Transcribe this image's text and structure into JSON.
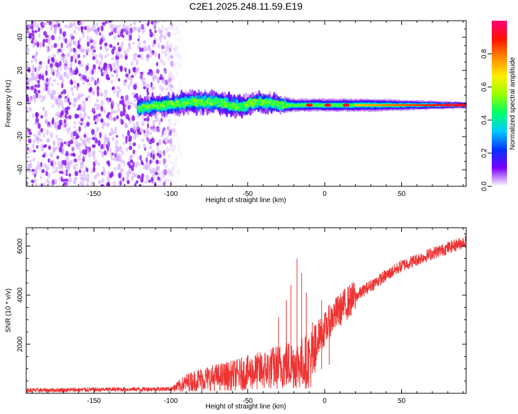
{
  "title": "C2E1.2025.248.11.59.E19",
  "chart_data": [
    {
      "type": "heatmap",
      "name": "spectrogram",
      "xlabel": "Height of straight line (km)",
      "ylabel": "Frequency (Hz)",
      "xlim": [
        -194,
        92
      ],
      "ylim": [
        -50,
        50
      ],
      "xticks": [
        -150,
        -100,
        -50,
        0,
        50
      ],
      "xtick_labels": [
        "-150",
        "-100",
        "-50",
        "0",
        "50"
      ],
      "yticks": [
        -40,
        -20,
        0,
        20,
        40
      ],
      "ytick_labels": [
        "-40",
        "-20",
        "0",
        "20",
        "40"
      ],
      "noise_region_x": [
        -194,
        -95
      ],
      "signal_start_x": -121,
      "band_center_points": [
        [
          -121,
          -3
        ],
        [
          -115,
          -2
        ],
        [
          -105,
          -1
        ],
        [
          -95,
          0
        ],
        [
          -85,
          1
        ],
        [
          -75,
          1
        ],
        [
          -65,
          0
        ],
        [
          -55,
          -2
        ],
        [
          -45,
          1
        ],
        [
          -35,
          0
        ],
        [
          -25,
          -1
        ],
        [
          -15,
          -1
        ],
        [
          0,
          -1
        ],
        [
          20,
          -1
        ],
        [
          50,
          -1
        ],
        [
          92,
          -1
        ]
      ],
      "band_halfwidth_points": [
        [
          -121,
          6
        ],
        [
          -90,
          7
        ],
        [
          -60,
          7
        ],
        [
          -30,
          6
        ],
        [
          -20,
          4
        ],
        [
          0,
          4
        ],
        [
          30,
          4
        ],
        [
          60,
          3
        ],
        [
          92,
          2
        ]
      ],
      "hot_spots": [
        [
          -10,
          -1
        ],
        [
          2,
          -1
        ],
        [
          14,
          -1
        ],
        [
          80,
          -1
        ],
        [
          86,
          -1
        ],
        [
          90,
          -1
        ]
      ]
    },
    {
      "type": "line",
      "name": "snr",
      "xlabel": "Height of straight line (km)",
      "ylabel": "SNR (10 * v/v)",
      "xlim": [
        -194,
        92
      ],
      "ylim": [
        0,
        6750
      ],
      "xticks": [
        -150,
        -100,
        -50,
        0,
        50
      ],
      "xtick_labels": [
        "-150",
        "-100",
        "-50",
        "0",
        "50"
      ],
      "yticks": [
        2000,
        4000,
        6000
      ],
      "ytick_labels": [
        "2000",
        "4000",
        "6000"
      ],
      "color": "#ee3333",
      "envelope_points": [
        [
          -194,
          120
        ],
        [
          -100,
          180
        ],
        [
          -90,
          600
        ],
        [
          -80,
          800
        ],
        [
          -60,
          1000
        ],
        [
          -40,
          1300
        ],
        [
          -25,
          1600
        ],
        [
          -15,
          1700
        ],
        [
          -10,
          1900
        ],
        [
          0,
          2600
        ],
        [
          5,
          3100
        ],
        [
          15,
          3700
        ],
        [
          30,
          4400
        ],
        [
          50,
          5200
        ],
        [
          70,
          5700
        ],
        [
          92,
          6200
        ]
      ],
      "spikes": [
        [
          -18,
          5500
        ],
        [
          -15,
          4900
        ],
        [
          -22,
          4400
        ],
        [
          -12,
          4100
        ],
        [
          -25,
          3800
        ],
        [
          -2,
          3800
        ],
        [
          3,
          3600
        ],
        [
          -30,
          3100
        ],
        [
          -8,
          2900
        ]
      ]
    }
  ],
  "colorbar": {
    "label": "Normalized spectral amplitude",
    "ticks": [
      0.0,
      0.2,
      0.4,
      0.6,
      0.8
    ],
    "tick_labels": [
      "0.0",
      "0.2",
      "0.4",
      "0.6",
      "0.8"
    ],
    "stops": [
      "#ffffff",
      "#7a00ff",
      "#0033ff",
      "#00ccff",
      "#00ff66",
      "#99ff00",
      "#ffee00",
      "#ff8800",
      "#ff1100",
      "#ff0077"
    ]
  }
}
